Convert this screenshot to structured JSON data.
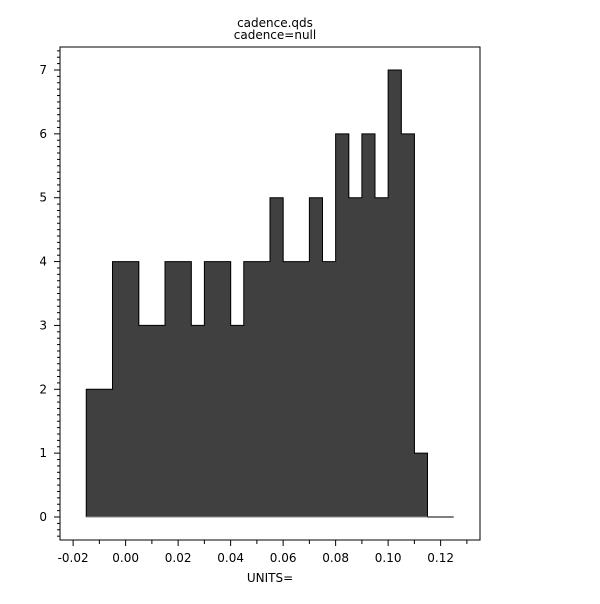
{
  "chart_data": {
    "type": "bar",
    "subtype": "histogram-step",
    "title": "cadence.qds",
    "subtitle": "cadence=null",
    "xlabel": "UNITS=",
    "ylabel": "",
    "bin_width": 0.005,
    "bin_starts": [
      -0.015,
      -0.01,
      -0.005,
      0.0,
      0.005,
      0.01,
      0.015,
      0.02,
      0.025,
      0.03,
      0.035,
      0.04,
      0.045,
      0.05,
      0.055,
      0.06,
      0.065,
      0.07,
      0.075,
      0.08,
      0.085,
      0.09,
      0.095,
      0.1,
      0.105,
      0.11,
      0.115,
      0.12
    ],
    "values": [
      2,
      2,
      4,
      4,
      3,
      3,
      4,
      4,
      3,
      4,
      4,
      3,
      4,
      4,
      5,
      4,
      4,
      5,
      4,
      6,
      5,
      6,
      5,
      7,
      6,
      1,
      0,
      0
    ],
    "xlim": [
      -0.025,
      0.135
    ],
    "ylim": [
      -0.36,
      7.36
    ],
    "xticks": [
      "-0.02",
      "0.00",
      "0.02",
      "0.04",
      "0.06",
      "0.08",
      "0.10",
      "0.12"
    ],
    "yticks": [
      "0",
      "1",
      "2",
      "3",
      "4",
      "5",
      "6",
      "7"
    ],
    "fill_color": "#404040",
    "grid": false,
    "legend": "none"
  }
}
